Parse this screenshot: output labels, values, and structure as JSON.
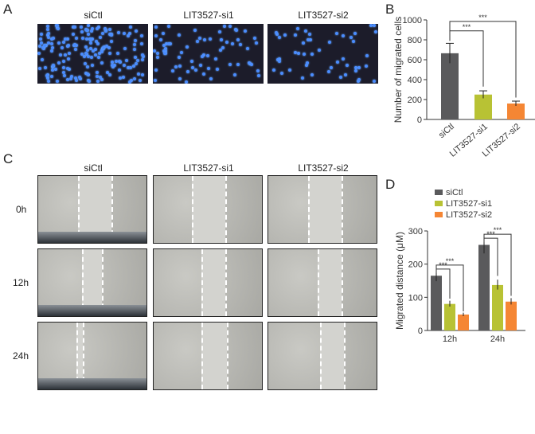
{
  "panels": {
    "a": "A",
    "b": "B",
    "c": "C",
    "d": "D"
  },
  "panel_a": {
    "columns": [
      "siCtl",
      "LIT3527-si1",
      "LIT3527-si2"
    ],
    "cell_density": [
      180,
      70,
      50
    ]
  },
  "panel_c": {
    "columns": [
      "siCtl",
      "LIT3527-si1",
      "LIT3527-si2"
    ],
    "rows": [
      "0h",
      "12h",
      "24h"
    ]
  },
  "colors": {
    "siCtl": "#5a5a5c",
    "si1": "#b8c234",
    "si2": "#f58634"
  },
  "chart_data": [
    {
      "type": "bar",
      "title": "",
      "ylabel": "Number of migrated cells",
      "xlabel": "",
      "categories": [
        "siCtl",
        "LIT3527-si1",
        "LIT3527-si2"
      ],
      "values": [
        665,
        250,
        160
      ],
      "ylim": [
        0,
        1000
      ],
      "yticks": [
        "0",
        "200",
        "400",
        "600",
        "800",
        "1000"
      ],
      "annotations": [
        {
          "from": "siCtl",
          "to": "LIT3527-si1",
          "text": "***"
        },
        {
          "from": "siCtl",
          "to": "LIT3527-si2",
          "text": "***"
        }
      ]
    },
    {
      "type": "bar",
      "title": "",
      "ylabel": "Migrated distance (μM)",
      "xlabel": "",
      "categories": [
        "12h",
        "24h"
      ],
      "series": [
        {
          "name": "siCtl",
          "values": [
            165,
            258
          ]
        },
        {
          "name": "LIT3527-si1",
          "values": [
            80,
            137
          ]
        },
        {
          "name": "LIT3527-si2",
          "values": [
            48,
            87
          ]
        }
      ],
      "ylim": [
        0,
        300
      ],
      "yticks": [
        "0",
        "100",
        "200",
        "300"
      ],
      "legend": "top-left",
      "annotations": [
        "***",
        "***",
        "***",
        "***"
      ]
    }
  ]
}
